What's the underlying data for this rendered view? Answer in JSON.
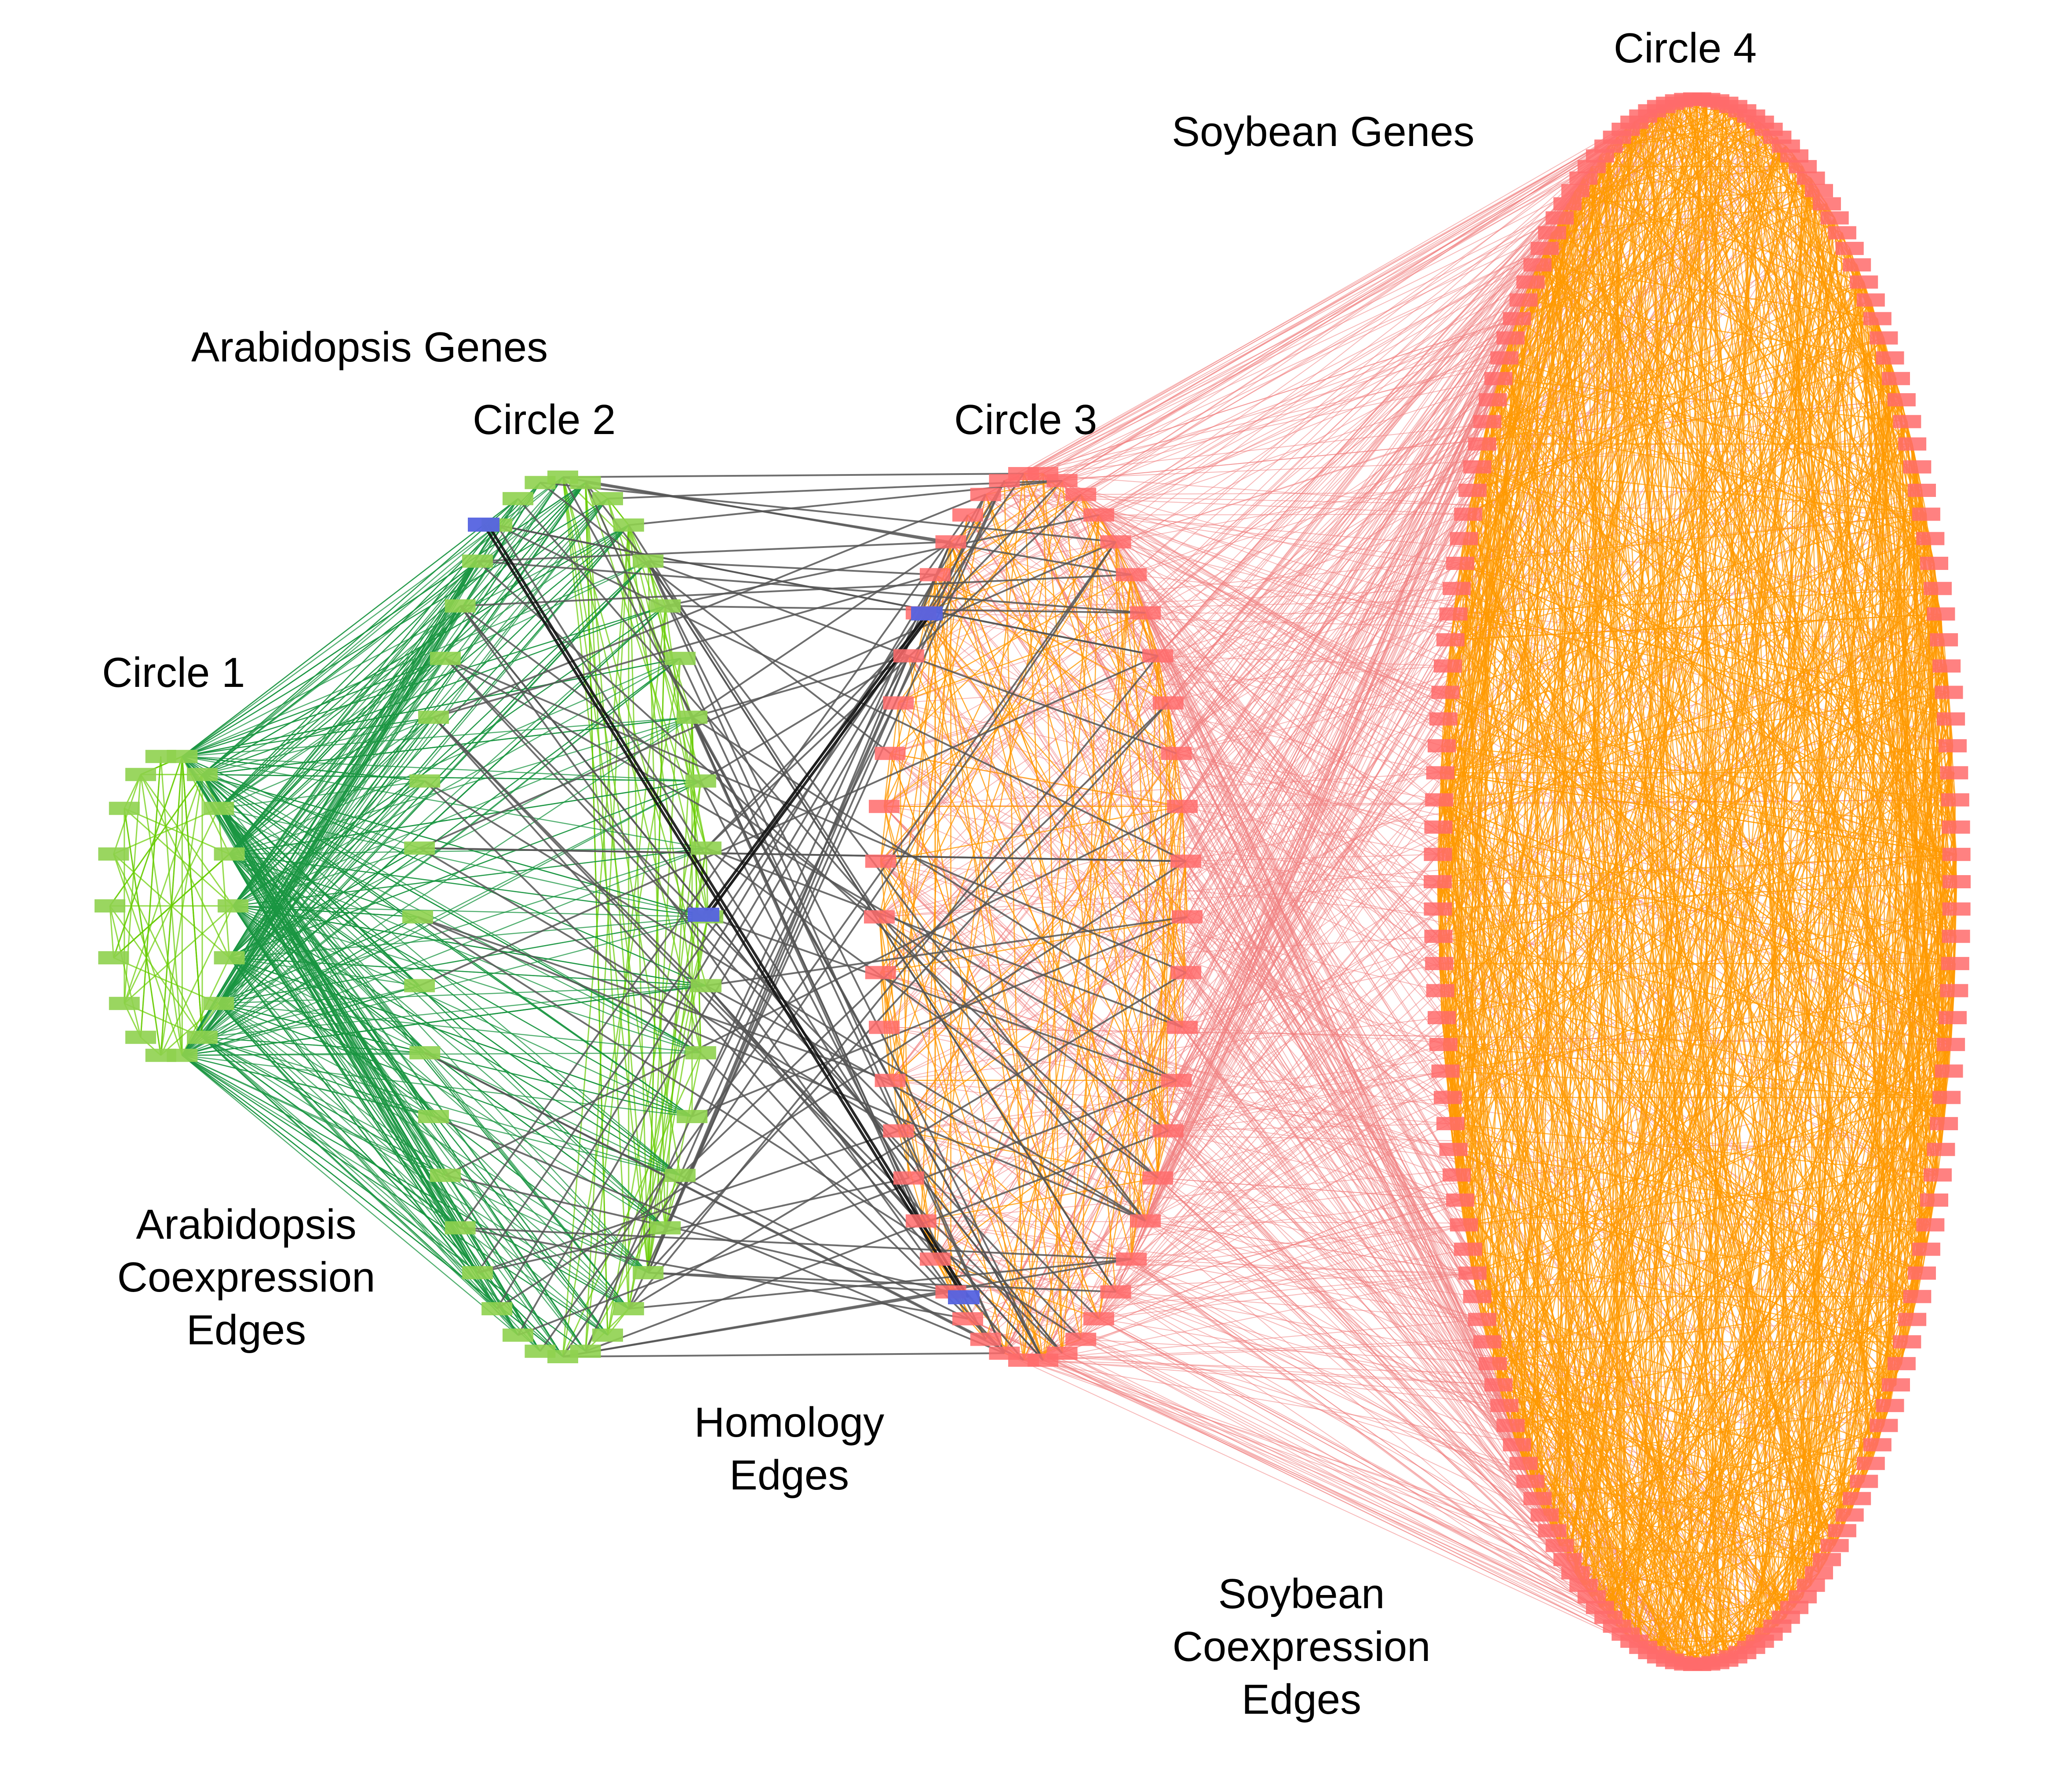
{
  "labels": {
    "circle1": "Circle 1",
    "circle2": "Circle 2",
    "circle3": "Circle 3",
    "circle4": "Circle 4",
    "arabidopsis_genes": "Arabidopsis Genes",
    "soybean_genes": "Soybean Genes",
    "arabidopsis_edges": [
      "Arabidopsis",
      "Coexpression",
      "Edges"
    ],
    "homology_edges": [
      "Homology",
      "Edges"
    ],
    "soybean_edges": [
      "Soybean",
      "Coexpression",
      "Edges"
    ]
  },
  "colors": {
    "arabidopsis_node": "#8fd14f",
    "arabidopsis_edge": "#1a9641",
    "arabidopsis_inner_edge": "#66cc00",
    "highlight_node": "#5563e0",
    "homology_edge": "#555555",
    "soybean_node": "#ff6b6b",
    "soybean_edge": "#f08080",
    "soybean_inner_edge": "#ff9900"
  }
}
